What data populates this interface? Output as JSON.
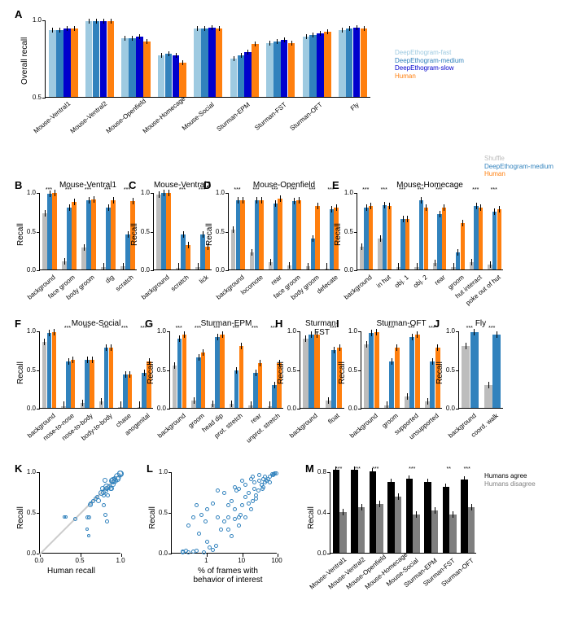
{
  "palette": {
    "fast": "#9ecae1",
    "medium": "#3182bd",
    "slow": "#0000cd",
    "human": "#ff7f0e",
    "shuffle": "#bdbdbd",
    "agree": "#000000",
    "disagree": "#7f7f7f",
    "scatter": "#3182bd",
    "grid_diag": "#cccccc",
    "text": "#000000",
    "bg": "#ffffff"
  },
  "panelA": {
    "label": "A",
    "ylabel": "Overall recall",
    "ylim": [
      0.5,
      1.0
    ],
    "ytick_step": 0.5,
    "categories": [
      "Mouse-Ventral1",
      "Mouse-Ventral2",
      "Mouse-Openfield",
      "Mouse-Homecage",
      "Mouse-Social",
      "Sturman-EPM",
      "Sturman-FST",
      "Sturman-OFT",
      "Fly"
    ],
    "series": [
      {
        "name": "DeepEthogram-fast",
        "colorKey": "fast",
        "values": [
          0.93,
          0.99,
          0.88,
          0.77,
          0.94,
          0.75,
          0.85,
          0.89,
          0.93
        ]
      },
      {
        "name": "DeepEthogram-medium",
        "colorKey": "medium",
        "values": [
          0.93,
          0.99,
          0.88,
          0.78,
          0.94,
          0.77,
          0.86,
          0.9,
          0.94
        ]
      },
      {
        "name": "DeepEthogram-slow",
        "colorKey": "slow",
        "values": [
          0.94,
          0.99,
          0.89,
          0.77,
          0.95,
          0.79,
          0.87,
          0.91,
          0.95
        ]
      },
      {
        "name": "Human",
        "colorKey": "human",
        "values": [
          0.94,
          0.99,
          0.86,
          0.72,
          0.94,
          0.84,
          0.85,
          0.92,
          0.94
        ]
      }
    ],
    "legend": [
      "DeepEthogram-fast",
      "DeepEthogram-medium",
      "DeepEthogram-slow",
      "Human"
    ],
    "legend_colors": [
      "fast",
      "medium",
      "slow",
      "human"
    ]
  },
  "legendBJ": {
    "items": [
      "Shuffle",
      "DeepEthogram-medium",
      "Human"
    ],
    "colors": [
      "shuffle",
      "medium",
      "human"
    ]
  },
  "rowPanels": [
    {
      "id": "B",
      "title": "Mouse-Ventral1",
      "cats": [
        "background",
        "face groom",
        "body groom",
        "dig",
        "scratch"
      ],
      "shuffle": [
        0.73,
        0.11,
        0.28,
        0.03,
        0.04
      ],
      "deg": [
        0.98,
        0.8,
        0.9,
        0.8,
        0.45
      ],
      "human": [
        0.99,
        0.87,
        0.91,
        0.9,
        0.88
      ],
      "sig": [
        "***",
        "***",
        "***",
        "***",
        "***"
      ]
    },
    {
      "id": "C",
      "title": "Mouse-Ventral2",
      "cats": [
        "background",
        "scratch",
        "lick"
      ],
      "shuffle": [
        0.97,
        0.02,
        0.03
      ],
      "deg": [
        0.99,
        0.45,
        0.45
      ],
      "human": [
        0.99,
        0.32,
        0.3
      ],
      "sig": [
        "",
        "***",
        "***"
      ]
    },
    {
      "id": "D",
      "title": "Mouse-Openfield",
      "cats": [
        "background",
        "locomote",
        "rear",
        "face groom",
        "body groom",
        "defecate"
      ],
      "shuffle": [
        0.52,
        0.22,
        0.1,
        0.05,
        0.04,
        0.01
      ],
      "deg": [
        0.9,
        0.9,
        0.85,
        0.88,
        0.4,
        0.78
      ],
      "human": [
        0.9,
        0.9,
        0.92,
        0.9,
        0.82,
        0.8
      ],
      "sig": [
        "***",
        "***",
        "***",
        "***",
        "***",
        "***"
      ]
    },
    {
      "id": "E",
      "title": "Mouse-Homecage",
      "cats": [
        "background",
        "in hut",
        "obj. 1",
        "obj. 2",
        "rear",
        "groom",
        "hut interact",
        "poke out of hut"
      ],
      "shuffle": [
        0.3,
        0.4,
        0.03,
        0.03,
        0.08,
        0.03,
        0.1,
        0.06
      ],
      "deg": [
        0.8,
        0.83,
        0.65,
        0.9,
        0.72,
        0.22,
        0.82,
        0.75
      ],
      "human": [
        0.82,
        0.82,
        0.65,
        0.8,
        0.8,
        0.6,
        0.8,
        0.78
      ],
      "sig": [
        "***",
        "***",
        "***",
        "***",
        "***",
        "",
        "***",
        "***"
      ]
    },
    {
      "id": "F",
      "title": "Mouse-Social",
      "cats": [
        "background",
        "nose-to-nose",
        "nose-to-body",
        "body-to-body",
        "chase",
        "anogenital"
      ],
      "shuffle": [
        0.85,
        0.02,
        0.06,
        0.08,
        0.01,
        0.01
      ],
      "deg": [
        0.97,
        0.6,
        0.62,
        0.78,
        0.43,
        0.45
      ],
      "human": [
        0.98,
        0.62,
        0.62,
        0.78,
        0.43,
        0.6
      ],
      "sig": [
        "",
        "***",
        "***",
        "***",
        "***",
        "***"
      ]
    },
    {
      "id": "G",
      "title": "Sturman-EPM",
      "cats": [
        "background",
        "groom",
        "head dip",
        "prot. stretch",
        "rear",
        "unprot. stretch"
      ],
      "shuffle": [
        0.55,
        0.1,
        0.05,
        0.05,
        0.03,
        0.02
      ],
      "deg": [
        0.9,
        0.65,
        0.92,
        0.48,
        0.45,
        0.3
      ],
      "human": [
        0.95,
        0.72,
        0.95,
        0.8,
        0.58,
        0.58
      ],
      "sig": [
        "***",
        "***",
        "***",
        "***",
        "***",
        "***"
      ]
    },
    {
      "id": "H",
      "title": "Sturman-FST",
      "cats": [
        "background",
        "float"
      ],
      "shuffle": [
        0.9,
        0.1
      ],
      "deg": [
        0.95,
        0.75
      ],
      "human": [
        0.95,
        0.78
      ],
      "sig": [
        "",
        "***"
      ]
    },
    {
      "id": "I",
      "title": "Sturman-OFT",
      "cats": [
        "background",
        "groom",
        "supported",
        "unsupported"
      ],
      "shuffle": [
        0.82,
        0.03,
        0.15,
        0.08
      ],
      "deg": [
        0.97,
        0.6,
        0.92,
        0.6
      ],
      "human": [
        0.98,
        0.78,
        0.95,
        0.78
      ],
      "sig": [
        "",
        "***",
        "***",
        "***"
      ]
    },
    {
      "id": "J",
      "title": "Fly",
      "cats": [
        "background",
        "coord. walk"
      ],
      "shuffle": [
        0.8,
        0.3
      ],
      "deg": [
        0.98,
        0.95
      ],
      "human": [
        0,
        0
      ],
      "sig": [
        "***",
        "***"
      ],
      "noHuman": true
    }
  ],
  "panelK": {
    "label": "K",
    "xlabel": "Human recall",
    "ylabel": "Recall",
    "lim": [
      0,
      1
    ],
    "tick_step": 0.5,
    "points": [
      {
        "x": 0.99,
        "y": 0.98,
        "s": 8
      },
      {
        "x": 0.98,
        "y": 0.99,
        "s": 7
      },
      {
        "x": 0.95,
        "y": 0.95,
        "s": 9
      },
      {
        "x": 0.92,
        "y": 0.9,
        "s": 7
      },
      {
        "x": 0.9,
        "y": 0.9,
        "s": 8
      },
      {
        "x": 0.9,
        "y": 0.85,
        "s": 6
      },
      {
        "x": 0.88,
        "y": 0.9,
        "s": 7
      },
      {
        "x": 0.87,
        "y": 0.8,
        "s": 6
      },
      {
        "x": 0.82,
        "y": 0.82,
        "s": 8
      },
      {
        "x": 0.82,
        "y": 0.8,
        "s": 6
      },
      {
        "x": 0.8,
        "y": 0.9,
        "s": 6
      },
      {
        "x": 0.8,
        "y": 0.78,
        "s": 7
      },
      {
        "x": 0.78,
        "y": 0.75,
        "s": 6
      },
      {
        "x": 0.78,
        "y": 0.72,
        "s": 5
      },
      {
        "x": 0.77,
        "y": 0.8,
        "s": 6
      },
      {
        "x": 0.72,
        "y": 0.65,
        "s": 6
      },
      {
        "x": 0.65,
        "y": 0.65,
        "s": 5
      },
      {
        "x": 0.62,
        "y": 0.6,
        "s": 6
      },
      {
        "x": 0.62,
        "y": 0.62,
        "s": 5
      },
      {
        "x": 0.6,
        "y": 0.45,
        "s": 5
      },
      {
        "x": 0.58,
        "y": 0.45,
        "s": 5
      },
      {
        "x": 0.58,
        "y": 0.3,
        "s": 4
      },
      {
        "x": 0.43,
        "y": 0.43,
        "s": 5
      },
      {
        "x": 0.32,
        "y": 0.45,
        "s": 4
      },
      {
        "x": 0.3,
        "y": 0.45,
        "s": 4
      },
      {
        "x": 0.6,
        "y": 0.22,
        "s": 4
      },
      {
        "x": 0.82,
        "y": 0.4,
        "s": 5
      },
      {
        "x": 0.8,
        "y": 0.48,
        "s": 5
      },
      {
        "x": 0.95,
        "y": 0.92,
        "s": 7
      },
      {
        "x": 0.92,
        "y": 0.92,
        "s": 6
      },
      {
        "x": 0.9,
        "y": 0.88,
        "s": 6
      },
      {
        "x": 0.88,
        "y": 0.8,
        "s": 6
      },
      {
        "x": 0.7,
        "y": 0.7,
        "s": 5
      },
      {
        "x": 0.68,
        "y": 0.68,
        "s": 5
      },
      {
        "x": 0.78,
        "y": 0.6,
        "s": 5
      },
      {
        "x": 0.75,
        "y": 0.75,
        "s": 7
      },
      {
        "x": 0.85,
        "y": 0.82,
        "s": 6
      },
      {
        "x": 0.83,
        "y": 0.72,
        "s": 5
      }
    ]
  },
  "panelL": {
    "label": "L",
    "xlabel": "% of frames with\nbehavior of interest",
    "ylabel": "Recall",
    "xlim": [
      0.1,
      100
    ],
    "ylim": [
      0,
      1
    ],
    "xticks": [
      1,
      10,
      100
    ],
    "xscale": "log",
    "points": [
      {
        "x": 90,
        "y": 0.99
      },
      {
        "x": 85,
        "y": 0.99
      },
      {
        "x": 80,
        "y": 0.98
      },
      {
        "x": 75,
        "y": 0.97
      },
      {
        "x": 70,
        "y": 0.98
      },
      {
        "x": 60,
        "y": 0.95
      },
      {
        "x": 55,
        "y": 0.92
      },
      {
        "x": 50,
        "y": 0.9
      },
      {
        "x": 50,
        "y": 0.9
      },
      {
        "x": 45,
        "y": 0.88
      },
      {
        "x": 40,
        "y": 0.82
      },
      {
        "x": 38,
        "y": 0.8
      },
      {
        "x": 35,
        "y": 0.85
      },
      {
        "x": 30,
        "y": 0.9
      },
      {
        "x": 28,
        "y": 0.78
      },
      {
        "x": 25,
        "y": 0.72
      },
      {
        "x": 22,
        "y": 0.8
      },
      {
        "x": 20,
        "y": 0.95
      },
      {
        "x": 20,
        "y": 0.65
      },
      {
        "x": 18,
        "y": 0.92
      },
      {
        "x": 15,
        "y": 0.62
      },
      {
        "x": 15,
        "y": 0.75
      },
      {
        "x": 12,
        "y": 0.45
      },
      {
        "x": 12,
        "y": 0.85
      },
      {
        "x": 10,
        "y": 0.9
      },
      {
        "x": 10,
        "y": 0.6
      },
      {
        "x": 9,
        "y": 0.48
      },
      {
        "x": 8,
        "y": 0.45
      },
      {
        "x": 8,
        "y": 0.8
      },
      {
        "x": 7,
        "y": 0.78
      },
      {
        "x": 6,
        "y": 0.43
      },
      {
        "x": 6,
        "y": 0.82
      },
      {
        "x": 5,
        "y": 0.22
      },
      {
        "x": 5,
        "y": 0.65
      },
      {
        "x": 4,
        "y": 0.45
      },
      {
        "x": 4,
        "y": 0.6
      },
      {
        "x": 3,
        "y": 0.4
      },
      {
        "x": 3,
        "y": 0.75
      },
      {
        "x": 2.5,
        "y": 0.3
      },
      {
        "x": 2,
        "y": 0.78
      },
      {
        "x": 2,
        "y": 0.45
      },
      {
        "x": 1.8,
        "y": 0.1
      },
      {
        "x": 1.5,
        "y": 0.62
      },
      {
        "x": 1.5,
        "y": 0.05
      },
      {
        "x": 1.2,
        "y": 0.08
      },
      {
        "x": 1,
        "y": 0.55
      },
      {
        "x": 1,
        "y": 0.15
      },
      {
        "x": 0.9,
        "y": 0.4
      },
      {
        "x": 0.8,
        "y": 0.02
      },
      {
        "x": 0.7,
        "y": 0.48
      },
      {
        "x": 0.6,
        "y": 0.25
      },
      {
        "x": 0.5,
        "y": 0.04
      },
      {
        "x": 0.5,
        "y": 0.6
      },
      {
        "x": 0.4,
        "y": 0.03
      },
      {
        "x": 0.4,
        "y": 0.45
      },
      {
        "x": 0.3,
        "y": 0.35
      },
      {
        "x": 0.3,
        "y": 0.02
      },
      {
        "x": 0.25,
        "y": 0.04
      },
      {
        "x": 0.2,
        "y": 0.03
      },
      {
        "x": 0.2,
        "y": 0.02
      },
      {
        "x": 30,
        "y": 0.97
      },
      {
        "x": 35,
        "y": 0.85
      },
      {
        "x": 25,
        "y": 0.68
      },
      {
        "x": 12,
        "y": 0.7
      },
      {
        "x": 18,
        "y": 0.55
      },
      {
        "x": 8,
        "y": 0.35
      },
      {
        "x": 6,
        "y": 0.55
      },
      {
        "x": 4,
        "y": 0.3
      },
      {
        "x": 60,
        "y": 0.88
      },
      {
        "x": 45,
        "y": 0.95
      },
      {
        "x": 40,
        "y": 0.92
      },
      {
        "x": 22,
        "y": 0.88
      }
    ]
  },
  "panelM": {
    "label": "M",
    "ylabel": "Recall",
    "ylim": [
      0,
      0.8
    ],
    "ytick_step": 0.4,
    "cats": [
      "Mouse-Ventral1",
      "Mouse-Ventral2",
      "Mouse-Openfield",
      "Mouse-Homecage",
      "Mouse-Social",
      "Sturman-EPM",
      "Sturman-FST",
      "Sturman-OFT"
    ],
    "agree": [
      0.82,
      0.82,
      0.8,
      0.7,
      0.73,
      0.7,
      0.65,
      0.72
    ],
    "disagree": [
      0.4,
      0.45,
      0.48,
      0.55,
      0.38,
      0.42,
      0.38,
      0.45
    ],
    "sig": [
      "***",
      "***",
      "***",
      "",
      "***",
      "",
      "**",
      "***"
    ],
    "legend": [
      "Humans agree",
      "Humans disagree"
    ],
    "legend_colors": [
      "agree",
      "disagree"
    ]
  }
}
